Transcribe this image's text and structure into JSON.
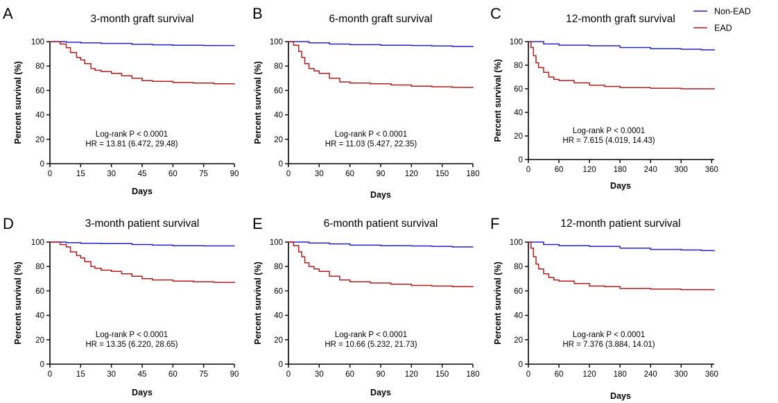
{
  "legend": [
    {
      "name": "Non-EAD",
      "color": "#2222cc"
    },
    {
      "name": "EAD",
      "color": "#b01c1c"
    }
  ],
  "chart_data": [
    {
      "panel": "A",
      "type": "line",
      "title": "3-month graft survival",
      "xlabel": "Days",
      "ylabel": "Percent survival (%)",
      "xlim": [
        0,
        90
      ],
      "ylim": [
        0,
        100
      ],
      "xticks": [
        0,
        15,
        30,
        45,
        60,
        75,
        90
      ],
      "yticks": [
        0,
        20,
        40,
        60,
        80,
        100
      ],
      "annotation": [
        "Log-rank P < 0.0001",
        "HR = 13.81 (6.472, 29.48)"
      ],
      "series": [
        {
          "name": "Non-EAD",
          "x": [
            0,
            8,
            15,
            25,
            40,
            50,
            60,
            75,
            90
          ],
          "y": [
            100,
            99.5,
            99,
            98.5,
            97.8,
            97.4,
            97,
            96.8,
            96.6
          ]
        },
        {
          "name": "EAD",
          "x": [
            0,
            5,
            8,
            10,
            13,
            15,
            17,
            20,
            22,
            25,
            30,
            35,
            40,
            45,
            50,
            60,
            70,
            80,
            90
          ],
          "y": [
            100,
            98,
            95,
            91,
            87,
            85,
            82,
            78,
            76.5,
            75.5,
            74,
            72,
            70,
            68,
            67.5,
            66.5,
            66,
            65.5,
            65
          ]
        }
      ]
    },
    {
      "panel": "B",
      "type": "line",
      "title": "6-month graft survival",
      "xlabel": "Days",
      "ylabel": "Percent survival (%)",
      "xlim": [
        0,
        180
      ],
      "ylim": [
        0,
        100
      ],
      "xticks": [
        0,
        30,
        60,
        90,
        120,
        150,
        180
      ],
      "yticks": [
        0,
        20,
        40,
        60,
        80,
        100
      ],
      "annotation": [
        "Log-rank P < 0.0001",
        "HR = 11.03 (5.427, 22.35)"
      ],
      "series": [
        {
          "name": "Non-EAD",
          "x": [
            0,
            20,
            40,
            60,
            90,
            120,
            140,
            160,
            180
          ],
          "y": [
            100,
            99,
            98,
            97.5,
            97,
            96.8,
            96.5,
            96,
            95.5
          ]
        },
        {
          "name": "EAD",
          "x": [
            0,
            5,
            10,
            13,
            16,
            20,
            25,
            30,
            40,
            50,
            60,
            80,
            100,
            120,
            140,
            160,
            180
          ],
          "y": [
            100,
            97,
            92,
            87,
            82,
            78,
            76,
            74,
            70,
            67,
            66,
            65.5,
            64.5,
            63.5,
            63,
            62.5,
            62
          ]
        }
      ]
    },
    {
      "panel": "C",
      "type": "line",
      "title": "12-month graft survival",
      "xlabel": "Days",
      "ylabel": "Percent survival (%)",
      "xlim": [
        0,
        365
      ],
      "ylim": [
        0,
        100
      ],
      "xticks": [
        0,
        60,
        120,
        180,
        240,
        300,
        360
      ],
      "yticks": [
        0,
        20,
        40,
        60,
        80,
        100
      ],
      "annotation": [
        "Log-rank P < 0.0001",
        "HR = 7.615 (4.019, 14.43)"
      ],
      "series": [
        {
          "name": "Non-EAD",
          "x": [
            0,
            30,
            60,
            120,
            180,
            240,
            300,
            340,
            365
          ],
          "y": [
            100,
            98,
            97,
            96.5,
            95,
            94,
            93.5,
            93,
            92.5
          ]
        },
        {
          "name": "EAD",
          "x": [
            0,
            5,
            10,
            15,
            20,
            30,
            40,
            50,
            60,
            90,
            120,
            150,
            180,
            240,
            300,
            365
          ],
          "y": [
            100,
            95,
            88,
            82,
            78,
            74,
            70,
            68,
            67,
            65,
            63,
            62,
            61,
            60.5,
            60,
            59.5
          ]
        }
      ]
    },
    {
      "panel": "D",
      "type": "line",
      "title": "3-month patient survival",
      "xlabel": "Days",
      "ylabel": "Percent survival (%)",
      "xlim": [
        0,
        90
      ],
      "ylim": [
        0,
        100
      ],
      "xticks": [
        0,
        15,
        30,
        45,
        60,
        75,
        90
      ],
      "yticks": [
        0,
        20,
        40,
        60,
        80,
        100
      ],
      "annotation": [
        "Log-rank P < 0.0001",
        "HR = 13.35 (6.220, 28.65)"
      ],
      "series": [
        {
          "name": "Non-EAD",
          "x": [
            0,
            8,
            15,
            25,
            40,
            50,
            60,
            75,
            90
          ],
          "y": [
            100,
            99.5,
            99,
            98.8,
            98,
            97.5,
            97,
            96.9,
            96.8
          ]
        },
        {
          "name": "EAD",
          "x": [
            0,
            5,
            8,
            10,
            13,
            15,
            17,
            20,
            22,
            25,
            30,
            35,
            40,
            45,
            50,
            60,
            70,
            80,
            90
          ],
          "y": [
            100,
            98,
            96,
            92,
            89,
            87,
            84,
            80,
            78.5,
            77,
            76,
            74,
            72,
            70,
            69,
            68,
            67.5,
            67,
            66.5
          ]
        }
      ]
    },
    {
      "panel": "E",
      "type": "line",
      "title": "6-month patient survival",
      "xlabel": "Days",
      "ylabel": "Percent survival (%)",
      "xlim": [
        0,
        180
      ],
      "ylim": [
        0,
        100
      ],
      "xticks": [
        0,
        30,
        60,
        90,
        120,
        150,
        180
      ],
      "yticks": [
        0,
        20,
        40,
        60,
        80,
        100
      ],
      "annotation": [
        "Log-rank P < 0.0001",
        "HR = 10.66 (5.232, 21.73)"
      ],
      "series": [
        {
          "name": "Non-EAD",
          "x": [
            0,
            20,
            40,
            60,
            90,
            120,
            140,
            160,
            180
          ],
          "y": [
            100,
            99.2,
            98.5,
            97.5,
            97,
            96.8,
            96.5,
            96,
            95.8
          ]
        },
        {
          "name": "EAD",
          "x": [
            0,
            5,
            10,
            13,
            16,
            20,
            25,
            30,
            40,
            50,
            60,
            80,
            100,
            120,
            140,
            160,
            180
          ],
          "y": [
            100,
            97,
            92,
            88,
            83,
            80,
            78,
            76,
            72,
            69,
            67.5,
            66.5,
            65.5,
            64.5,
            64,
            63.5,
            63
          ]
        }
      ]
    },
    {
      "panel": "F",
      "type": "line",
      "title": "12-month patient survival",
      "xlabel": "Days",
      "ylabel": "Percent survival (%)",
      "xlim": [
        0,
        365
      ],
      "ylim": [
        0,
        100
      ],
      "xticks": [
        0,
        60,
        120,
        180,
        240,
        300,
        360
      ],
      "yticks": [
        0,
        20,
        40,
        60,
        80,
        100
      ],
      "annotation": [
        "Log-rank P < 0.0001",
        "HR = 7.376 (3.884, 14.01)"
      ],
      "series": [
        {
          "name": "Non-EAD",
          "x": [
            0,
            30,
            60,
            120,
            180,
            240,
            300,
            340,
            365
          ],
          "y": [
            100,
            98,
            97,
            96.5,
            95,
            94,
            93.5,
            93,
            92.5
          ]
        },
        {
          "name": "EAD",
          "x": [
            0,
            5,
            10,
            15,
            20,
            30,
            40,
            50,
            60,
            90,
            120,
            150,
            180,
            240,
            300,
            365
          ],
          "y": [
            100,
            95,
            88,
            82,
            78,
            74,
            71,
            69,
            68,
            66,
            64,
            63.5,
            62,
            61.5,
            61,
            60.5
          ]
        }
      ]
    }
  ]
}
